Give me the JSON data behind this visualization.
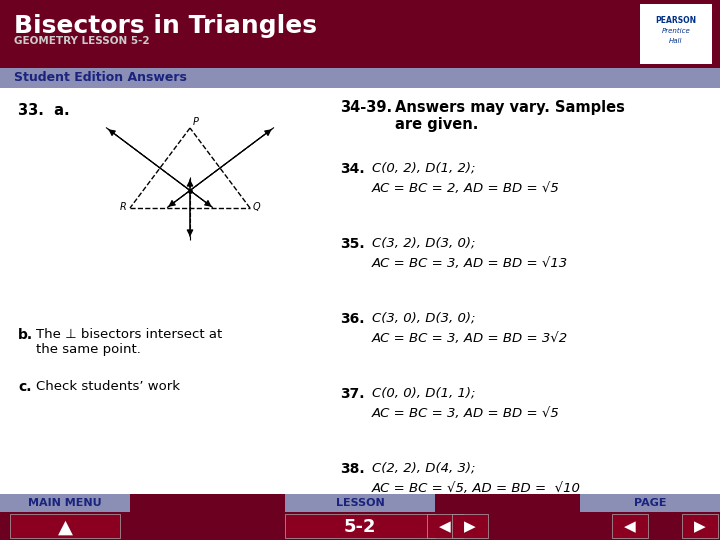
{
  "title": "Bisectors in Triangles",
  "subtitle": "GEOMETRY LESSON 5-2",
  "section_label": "Student Edition Answers",
  "header_bg": "#6B0020",
  "section_bg": "#8B8FB5",
  "footer_bg": "#6B0020",
  "footer_label_bg": "#8B8FB5",
  "body_bg": "#FFFFFF",
  "title_color": "#FFFFFF",
  "subtitle_color": "#CCCCCC",
  "section_color": "#1A237E",
  "q33_label": "33.  a.",
  "q33b": "b.  The ⊥ bisectors intersect at\n    the same point.",
  "q33c": "c.  Check students’ work",
  "q3439_header": "34-39.   Answers may vary. Samples\n              are given.",
  "items": [
    {
      "num": "34.",
      "line1": "C(0, 2), D(1, 2);",
      "line2": "AC = BC = 2, AD = BD = √5"
    },
    {
      "num": "35.",
      "line1": "C(3, 2), D(3, 0);",
      "line2": "AC = BC = 3, AD = BD = √13"
    },
    {
      "num": "36.",
      "line1": "C(3, 0), D(3, 0);",
      "line2": "AC = BC = 3, AD = BD = 3√2"
    },
    {
      "num": "37.",
      "line1": "C(0, 0), D(1, 1);",
      "line2": "AC = BC = 3, AD = BD = √5"
    },
    {
      "num": "38.",
      "line1": "C(2, 2), D(4, 3);",
      "line2": "AC = BC = √5, AD = BD =  √10"
    }
  ],
  "footer_left": "MAIN MENU",
  "footer_center": "LESSON",
  "footer_page": "PAGE",
  "footer_num": "5-2"
}
